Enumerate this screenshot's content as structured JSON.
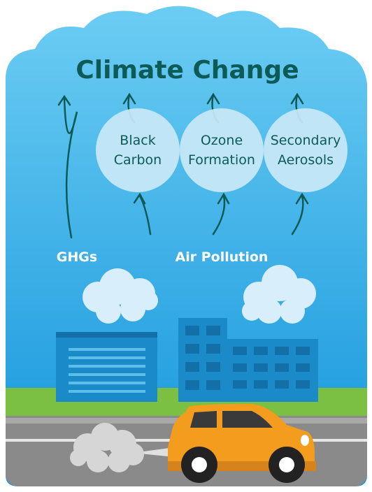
{
  "title": "Climate Change",
  "nodes": [
    {
      "lines": [
        "Black",
        "Carbon"
      ]
    },
    {
      "lines": [
        "Ozone",
        "Formation"
      ]
    },
    {
      "lines": [
        "Secondary",
        "Aerosols"
      ]
    }
  ],
  "labels": {
    "ghgs": "GHGs",
    "air_pollution": "Air Pollution"
  }
}
